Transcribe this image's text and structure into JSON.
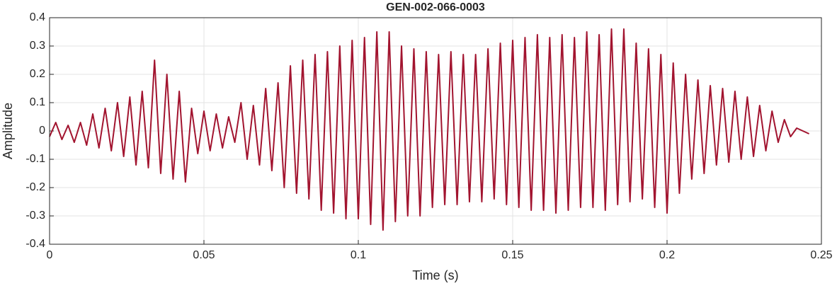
{
  "chart_data": {
    "type": "line",
    "title": "GEN-002-066-0003",
    "x_label": "Time (s)",
    "y_label": "Amplitude",
    "x": [
      0,
      0.002,
      0.004,
      0.006,
      0.008,
      0.01,
      0.012,
      0.014,
      0.016,
      0.018,
      0.02,
      0.022,
      0.024,
      0.026,
      0.028,
      0.03,
      0.032,
      0.034,
      0.036,
      0.038,
      0.04,
      0.042,
      0.044,
      0.046,
      0.048,
      0.05,
      0.052,
      0.054,
      0.056,
      0.058,
      0.06,
      0.062,
      0.064,
      0.066,
      0.068,
      0.07,
      0.072,
      0.074,
      0.076,
      0.078,
      0.08,
      0.082,
      0.084,
      0.086,
      0.088,
      0.09,
      0.092,
      0.094,
      0.096,
      0.098,
      0.1,
      0.102,
      0.104,
      0.106,
      0.108,
      0.11,
      0.112,
      0.114,
      0.116,
      0.118,
      0.12,
      0.122,
      0.124,
      0.126,
      0.128,
      0.13,
      0.132,
      0.134,
      0.136,
      0.138,
      0.14,
      0.142,
      0.144,
      0.146,
      0.148,
      0.15,
      0.152,
      0.154,
      0.156,
      0.158,
      0.16,
      0.162,
      0.164,
      0.166,
      0.168,
      0.17,
      0.172,
      0.174,
      0.176,
      0.178,
      0.18,
      0.182,
      0.184,
      0.186,
      0.188,
      0.19,
      0.192,
      0.194,
      0.196,
      0.198,
      0.2,
      0.202,
      0.204,
      0.206,
      0.208,
      0.21,
      0.212,
      0.214,
      0.216,
      0.218,
      0.22,
      0.222,
      0.224,
      0.226,
      0.228,
      0.23,
      0.232,
      0.234,
      0.236,
      0.238,
      0.24,
      0.242,
      0.244,
      0.246
    ],
    "series": [
      {
        "color": "#a2142f",
        "values": [
          -0.02,
          0.03,
          -0.03,
          0.02,
          -0.04,
          0.03,
          -0.05,
          0.06,
          -0.06,
          0.08,
          -0.07,
          0.1,
          -0.09,
          0.12,
          -0.12,
          0.14,
          -0.13,
          0.25,
          -0.15,
          0.2,
          -0.17,
          0.14,
          -0.18,
          0.08,
          -0.08,
          0.07,
          -0.07,
          0.06,
          -0.06,
          0.05,
          -0.04,
          0.1,
          -0.1,
          0.09,
          -0.12,
          0.15,
          -0.14,
          0.17,
          -0.2,
          0.23,
          -0.22,
          0.25,
          -0.24,
          0.27,
          -0.28,
          0.28,
          -0.29,
          0.3,
          -0.31,
          0.32,
          -0.31,
          0.33,
          -0.33,
          0.35,
          -0.35,
          0.35,
          -0.32,
          0.3,
          -0.3,
          0.29,
          -0.3,
          0.28,
          -0.27,
          0.27,
          -0.26,
          0.28,
          -0.26,
          0.27,
          -0.25,
          0.27,
          -0.25,
          0.29,
          -0.24,
          0.31,
          -0.26,
          0.32,
          -0.27,
          0.33,
          -0.28,
          0.34,
          -0.28,
          0.33,
          -0.29,
          0.34,
          -0.28,
          0.33,
          -0.27,
          0.35,
          -0.27,
          0.34,
          -0.28,
          0.36,
          -0.26,
          0.36,
          -0.25,
          0.31,
          -0.24,
          0.29,
          -0.27,
          0.27,
          -0.29,
          0.24,
          -0.22,
          0.2,
          -0.17,
          0.18,
          -0.15,
          0.16,
          -0.12,
          0.15,
          -0.11,
          0.14,
          -0.1,
          0.12,
          -0.09,
          0.09,
          -0.07,
          0.07,
          -0.04,
          0.04,
          -0.02,
          0.01,
          0,
          -0.01
        ]
      }
    ],
    "xlim": [
      0,
      0.25
    ],
    "xticks": [
      0,
      0.05,
      0.1,
      0.15,
      0.2,
      0.25
    ],
    "ylim": [
      -0.4,
      0.4
    ],
    "yticks": [
      -0.4,
      -0.3,
      -0.2,
      -0.1,
      0,
      0.1,
      0.2,
      0.3,
      0.4
    ],
    "grid": true
  }
}
